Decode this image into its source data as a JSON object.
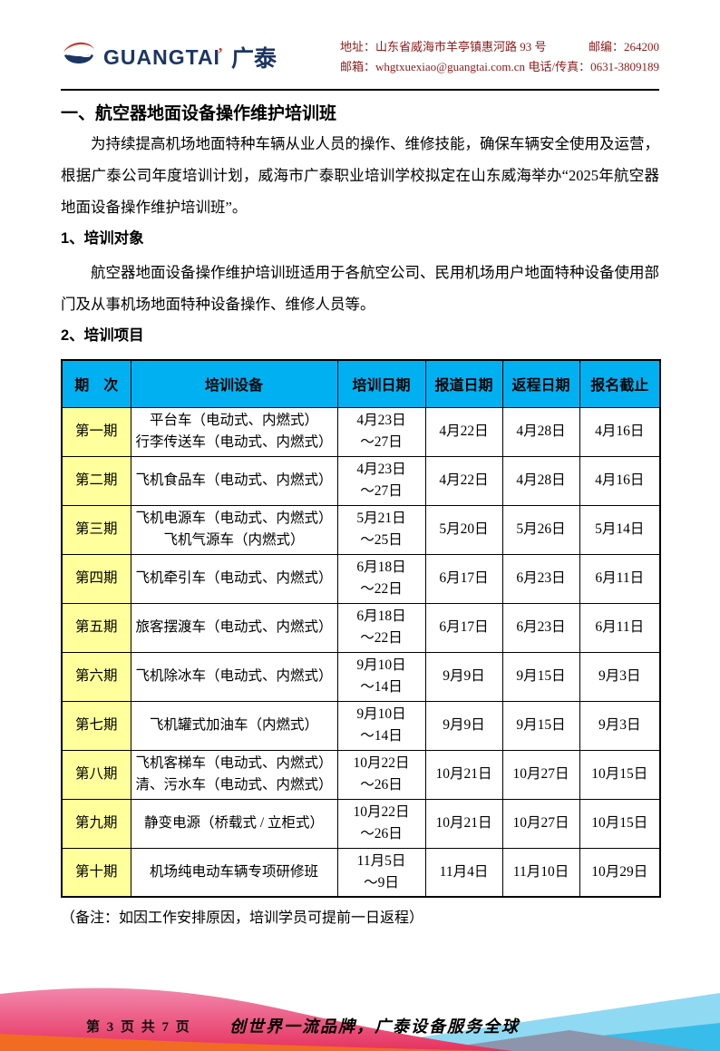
{
  "colors": {
    "table_header_bg": "#00B0F0",
    "period_col_bg": "#FFFF9C",
    "contact_text": "#8B1A1A",
    "brand_navy": "#1C3664",
    "brand_red": "#C8392B",
    "footer_pink_top": "#F287AC",
    "footer_pink_bottom": "#E6325F",
    "footer_orange": "#F26B22",
    "footer_cyan_light": "#90D9F2",
    "footer_cyan_mid": "#38BDEA",
    "footer_slate": "#8C95AC"
  },
  "header": {
    "logo": {
      "brand_en": "GUANGTAI",
      "accent": "’",
      "brand_zh": "广泰"
    },
    "contact": {
      "address": "地址：山东省威海市羊亭镇惠河路 93 号",
      "postcode": "邮编：264200",
      "email": "邮箱：whgtxuexiao@guangtai.com.cn",
      "phone": "电话/传真：0631-3809189"
    }
  },
  "document": {
    "title": "一、航空器地面设备操作维护培训班",
    "intro": "为持续提高机场地面特种车辆从业人员的操作、维修技能，确保车辆安全使用及运营，根据广泰公司年度培训计划，威海市广泰职业培训学校拟定在山东威海举办“2025年航空器地面设备操作维护培训班”。",
    "section1_heading": "1、培训对象",
    "section1_body": "航空器地面设备操作维护培训班适用于各航空公司、民用机场用户地面特种设备使用部门及从事机场地面特种设备操作、维修人员等。",
    "section2_heading": "2、培训项目",
    "note": "（备注：如因工作安排原因，培训学员可提前一日返程）"
  },
  "table": {
    "headers": [
      "期　次",
      "培训设备",
      "培训日期",
      "报道日期",
      "返程日期",
      "报名截止"
    ],
    "rows": [
      {
        "period": "第一期",
        "equipment": [
          "平台车（电动式、内燃式）",
          "行李传送车（电动式、内燃式）"
        ],
        "dates": [
          "4月23日",
          "～27日"
        ],
        "report": "4月22日",
        "return": "4月28日",
        "deadline": "4月16日"
      },
      {
        "period": "第二期",
        "equipment": [
          "飞机食品车（电动式、内燃式）"
        ],
        "dates": [
          "4月23日",
          "～27日"
        ],
        "report": "4月22日",
        "return": "4月28日",
        "deadline": "4月16日"
      },
      {
        "period": "第三期",
        "equipment": [
          "飞机电源车（电动式、内燃式）",
          "飞机气源车（内燃式）"
        ],
        "dates": [
          "5月21日",
          "～25日"
        ],
        "report": "5月20日",
        "return": "5月26日",
        "deadline": "5月14日"
      },
      {
        "period": "第四期",
        "equipment": [
          "飞机牵引车（电动式、内燃式）"
        ],
        "dates": [
          "6月18日",
          "～22日"
        ],
        "report": "6月17日",
        "return": "6月23日",
        "deadline": "6月11日"
      },
      {
        "period": "第五期",
        "equipment": [
          "旅客摆渡车（电动式、内燃式）"
        ],
        "dates": [
          "6月18日",
          "～22日"
        ],
        "report": "6月17日",
        "return": "6月23日",
        "deadline": "6月11日"
      },
      {
        "period": "第六期",
        "equipment": [
          "飞机除冰车（电动式、内燃式）"
        ],
        "dates": [
          "9月10日",
          "～14日"
        ],
        "report": "9月9日",
        "return": "9月15日",
        "deadline": "9月3日"
      },
      {
        "period": "第七期",
        "equipment": [
          "飞机罐式加油车（内燃式）"
        ],
        "dates": [
          "9月10日",
          "～14日"
        ],
        "report": "9月9日",
        "return": "9月15日",
        "deadline": "9月3日"
      },
      {
        "period": "第八期",
        "equipment": [
          "飞机客梯车（电动式、内燃式）",
          "清、污水车（电动式、内燃式）"
        ],
        "dates": [
          "10月22日",
          "～26日"
        ],
        "report": "10月21日",
        "return": "10月27日",
        "deadline": "10月15日"
      },
      {
        "period": "第九期",
        "equipment": [
          "静变电源（桥载式 / 立柜式）"
        ],
        "dates": [
          "10月22日",
          "～26日"
        ],
        "report": "10月21日",
        "return": "10月27日",
        "deadline": "10月15日"
      },
      {
        "period": "第十期",
        "equipment": [
          "机场纯电动车辆专项研修班"
        ],
        "dates": [
          "11月5日",
          "～9日"
        ],
        "report": "11月4日",
        "return": "11月10日",
        "deadline": "10月29日"
      }
    ]
  },
  "footer": {
    "page_info": "第 3 页 共 7 页",
    "slogan": "创世界一流品牌，广泰设备服务全球"
  }
}
